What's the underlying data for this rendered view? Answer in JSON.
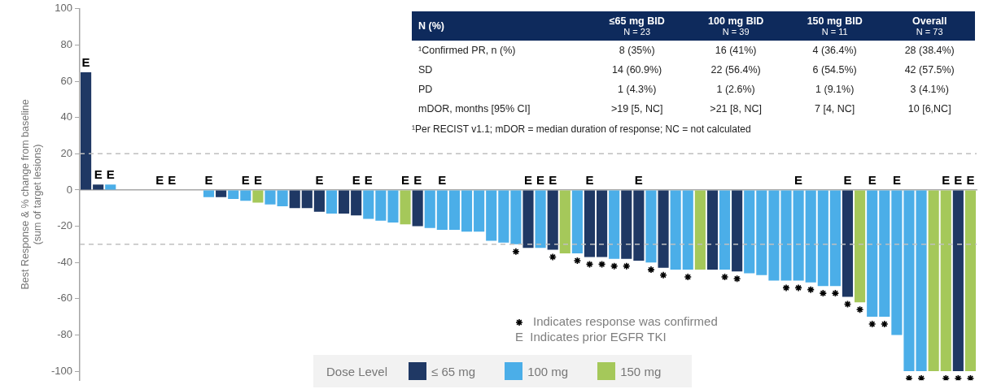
{
  "chart_data": [
    {
      "type": "bar",
      "ylabel": "Best Response & % change from baseline\n(sum of target lesions)",
      "legend_title": "Dose Level",
      "legend": "bottom",
      "stacked": true,
      "categories": [
        null,
        null,
        null,
        null,
        null,
        null,
        null,
        null,
        null,
        null,
        null,
        null,
        null,
        null,
        null,
        null,
        null,
        null,
        null,
        null,
        null,
        null,
        null,
        null,
        null,
        null,
        null,
        null,
        null,
        null,
        null,
        null,
        null,
        null,
        null,
        null,
        null,
        null,
        null,
        null,
        null,
        null,
        null,
        null,
        null,
        null,
        null,
        null,
        null,
        null,
        null,
        null,
        null,
        null,
        null,
        null,
        null,
        null,
        null,
        null,
        null,
        null,
        null,
        null,
        null,
        null,
        null,
        null,
        null,
        null,
        null,
        null,
        null
      ],
      "ylim": [
        -105,
        100
      ],
      "yticks": [
        -100,
        -80,
        -60,
        -40,
        -20,
        0,
        20,
        40,
        60,
        80,
        100
      ],
      "ref_lines": [
        {
          "axis": "y",
          "value": 20,
          "line_style": "dashed",
          "color": "#bfbfbf"
        },
        {
          "axis": "y",
          "value": -30,
          "line_style": "dashed",
          "color": "#bfbfbf"
        }
      ],
      "annotations": [
        "E  Indicates prior EGFR TKI"
      ],
      "series": [
        {
          "name": "≤ 65 mg",
          "color": "#1f3864",
          "values": [
            65,
            3,
            null,
            0,
            0,
            0,
            0,
            0,
            0,
            0,
            null,
            -4,
            null,
            null,
            null,
            null,
            null,
            -10,
            -10,
            -12,
            null,
            -13,
            -14,
            null,
            null,
            null,
            null,
            -20,
            null,
            null,
            null,
            null,
            null,
            null,
            null,
            null,
            -32,
            null,
            -33,
            null,
            null,
            -37,
            -37,
            null,
            -38,
            -39,
            null,
            -43,
            null,
            null,
            null,
            -44,
            null,
            -45,
            null,
            null,
            null,
            null,
            null,
            null,
            null,
            null,
            -59,
            null,
            null,
            null,
            null,
            null,
            null,
            null,
            null,
            -100,
            null
          ],
          "value_labels": [
            "E",
            "E",
            null,
            null,
            null,
            null,
            "E",
            "E",
            null,
            null,
            null,
            null,
            null,
            null,
            null,
            null,
            null,
            null,
            null,
            "E",
            null,
            null,
            "E",
            null,
            null,
            null,
            null,
            "E",
            null,
            null,
            null,
            null,
            null,
            null,
            null,
            null,
            "E",
            null,
            "E",
            null,
            null,
            "E",
            null,
            null,
            null,
            "E",
            null,
            null,
            null,
            null,
            null,
            null,
            null,
            null,
            null,
            null,
            null,
            null,
            null,
            null,
            null,
            null,
            "E",
            null,
            null,
            null,
            null,
            null,
            null,
            null,
            null,
            "E",
            null
          ]
        },
        {
          "name": "100 mg",
          "color": "#4baee8",
          "values": [
            null,
            null,
            3,
            null,
            null,
            null,
            null,
            null,
            null,
            null,
            -4,
            null,
            -5,
            -6,
            null,
            -8,
            -9,
            null,
            null,
            null,
            -13,
            null,
            null,
            -16,
            -17,
            -18,
            null,
            null,
            -21,
            -22,
            -22,
            -23,
            -23,
            -28,
            -29,
            -30,
            null,
            -32,
            null,
            null,
            -35,
            null,
            null,
            -38,
            null,
            null,
            -40,
            null,
            -44,
            -44,
            null,
            null,
            -44,
            null,
            -46,
            -47,
            -50,
            -50,
            -50,
            -51,
            -53,
            -53,
            null,
            null,
            -70,
            -70,
            -80,
            -100,
            -100,
            null,
            null,
            null,
            null
          ],
          "value_labels": [
            null,
            null,
            "E",
            null,
            null,
            null,
            null,
            null,
            null,
            null,
            "E",
            null,
            null,
            "E",
            null,
            null,
            null,
            null,
            null,
            null,
            null,
            null,
            null,
            "E",
            null,
            null,
            null,
            null,
            null,
            "E",
            null,
            null,
            null,
            null,
            null,
            null,
            null,
            "E",
            null,
            null,
            null,
            null,
            null,
            null,
            null,
            null,
            null,
            null,
            null,
            null,
            null,
            null,
            null,
            null,
            null,
            null,
            null,
            null,
            "E",
            null,
            null,
            null,
            null,
            null,
            "E",
            null,
            "E",
            null,
            null,
            null,
            null,
            null,
            null
          ]
        },
        {
          "name": "150 mg",
          "color": "#a5c85a",
          "values": [
            null,
            null,
            null,
            null,
            null,
            null,
            null,
            null,
            null,
            null,
            null,
            null,
            null,
            null,
            -7,
            null,
            null,
            null,
            null,
            null,
            null,
            null,
            null,
            null,
            null,
            null,
            -19,
            null,
            null,
            null,
            null,
            null,
            null,
            null,
            null,
            null,
            null,
            null,
            null,
            -35,
            null,
            null,
            null,
            null,
            null,
            null,
            null,
            null,
            null,
            null,
            -44,
            null,
            null,
            null,
            null,
            null,
            null,
            null,
            null,
            null,
            null,
            null,
            null,
            -62,
            null,
            null,
            null,
            null,
            null,
            -100,
            -100,
            null,
            -100
          ],
          "value_labels": [
            null,
            null,
            null,
            null,
            null,
            null,
            null,
            null,
            null,
            null,
            null,
            null,
            null,
            null,
            "E",
            null,
            null,
            null,
            null,
            null,
            null,
            null,
            null,
            null,
            null,
            null,
            "E",
            null,
            null,
            null,
            null,
            null,
            null,
            null,
            null,
            null,
            null,
            null,
            null,
            null,
            null,
            null,
            null,
            null,
            null,
            null,
            null,
            null,
            null,
            null,
            null,
            null,
            null,
            null,
            null,
            null,
            null,
            null,
            null,
            null,
            null,
            null,
            null,
            null,
            null,
            null,
            null,
            null,
            null,
            null,
            "E",
            null,
            "E"
          ]
        },
        {
          "name": "Indicates response was confirmed",
          "type": "scatter",
          "marker": "cross",
          "color": "#000000",
          "values": [
            null,
            null,
            null,
            null,
            null,
            null,
            null,
            null,
            null,
            null,
            null,
            null,
            null,
            null,
            null,
            null,
            null,
            null,
            null,
            null,
            null,
            null,
            null,
            null,
            null,
            null,
            null,
            null,
            null,
            null,
            null,
            null,
            null,
            null,
            null,
            -34,
            null,
            null,
            -37,
            null,
            -39,
            -41,
            -41,
            -42,
            -42,
            null,
            -44,
            -47,
            null,
            -48,
            null,
            null,
            -48,
            -49,
            null,
            null,
            null,
            -54,
            -54,
            -55,
            -57,
            -57,
            -63,
            -66,
            -74,
            -74,
            null,
            -104,
            -104,
            null,
            -104,
            -104,
            -104
          ]
        }
      ]
    },
    {
      "type": "other",
      "ylabel": "N (%)",
      "categories": [
        "≤65 mg BID\nN = 23",
        "100 mg BID\nN = 39",
        "150 mg BID\nN = 11",
        "Overall\nN = 73"
      ],
      "y_categories": [
        "¹Confirmed PR, n (%)",
        "SD",
        "PD",
        "mDOR, months [95% CI]"
      ],
      "cell_labels": [
        [
          "8 (35%)",
          "16 (41%)",
          "4 (36.4%)",
          "28 (38.4%)"
        ],
        [
          "14 (60.9%)",
          "22 (56.4%)",
          "6 (54.5%)",
          "42 (57.5%)"
        ],
        [
          "1 (4.3%)",
          "1 (2.6%)",
          "1 (9.1%)",
          "3 (4.1%)"
        ],
        [
          ">19 [5, NC]",
          ">21 [8, NC]",
          "7 [4, NC]",
          "10 [6,NC]"
        ]
      ],
      "annotations": [
        "¹Per RECIST v1.1; mDOR = median duration of response; NC = not calculated"
      ]
    }
  ]
}
